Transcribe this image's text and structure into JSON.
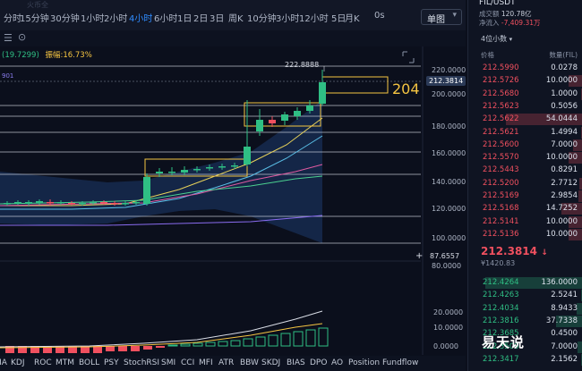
{
  "timeframes": [
    "分时",
    "15分钟",
    "30分钟",
    "1小时",
    "2小时",
    "4小时",
    "6小时",
    "1日",
    "2日",
    "3日",
    "周K",
    "10分钟",
    "3小时",
    "12小时",
    "5日",
    "月K",
    "0s"
  ],
  "active_timeframe_index": 5,
  "symbol_select": "单图",
  "indicator_line": {
    "ma_value": "(19.7299)",
    "amplitude_label": "振幅:",
    "amplitude_value": "16.73%",
    "left_value": "901"
  },
  "y_axis_labels": [
    "220.0000",
    "200.0000",
    "180.0000",
    "160.0000",
    "140.0000",
    "120.0000",
    "100.0000",
    "80.0000"
  ],
  "price_tags": {
    "high": "222.8888",
    "current": "212.3814",
    "low_marker": "87.6557",
    "annotation": "204"
  },
  "sub_axis_labels": [
    "20.0000",
    "10.0000",
    "0.0000"
  ],
  "indicator_tabs": [
    "MA",
    "KDJ",
    "ROC",
    "MTM",
    "BOLL",
    "PSY",
    "StochRSI",
    "SMI",
    "CCI",
    "MFI",
    "ATR",
    "BBW",
    "SKDJ",
    "BIAS",
    "DPO",
    "AO",
    "Position",
    "Fundflow"
  ],
  "right_panel": {
    "symbol": "FIL/USDT",
    "stat1_label": "成交额",
    "stat1_value": "120.78亿",
    "stat2_label": "净流入",
    "stat2_value": "-7,409.31万",
    "depth_select": "4位小数",
    "header_price": "价格",
    "header_qty": "数量(FIL)",
    "asks": [
      {
        "p": "212.5990",
        "q": "0.0278"
      },
      {
        "p": "212.5726",
        "q": "10.0000"
      },
      {
        "p": "212.5680",
        "q": "1.0000"
      },
      {
        "p": "212.5623",
        "q": "0.5056"
      },
      {
        "p": "212.5622",
        "q": "54.0444"
      },
      {
        "p": "212.5621",
        "q": "1.4994"
      },
      {
        "p": "212.5600",
        "q": "7.0000"
      },
      {
        "p": "212.5570",
        "q": "10.0000"
      },
      {
        "p": "212.5443",
        "q": "0.8291"
      },
      {
        "p": "212.5200",
        "q": "2.7712"
      },
      {
        "p": "212.5169",
        "q": "2.9854"
      },
      {
        "p": "212.5168",
        "q": "14.7252"
      },
      {
        "p": "212.5141",
        "q": "10.0000"
      },
      {
        "p": "212.5136",
        "q": "10.0000"
      }
    ],
    "last_price": "212.3814",
    "last_price_cny": "¥1420.83",
    "bids": [
      {
        "p": "212.4264",
        "q": "136.0000"
      },
      {
        "p": "212.4263",
        "q": "2.5241"
      },
      {
        "p": "212.4034",
        "q": "8.9433"
      },
      {
        "p": "212.3816",
        "q": "37.7338"
      },
      {
        "p": "212.3685",
        "q": "0.4500"
      },
      {
        "p": "212.3500",
        "q": "7.0000"
      },
      {
        "p": "212.3417",
        "q": "2.1562"
      }
    ]
  },
  "watermark": "易天说",
  "colors": {
    "up": "#2fbf84",
    "down": "#f0505f",
    "accent": "#2f8cff"
  }
}
